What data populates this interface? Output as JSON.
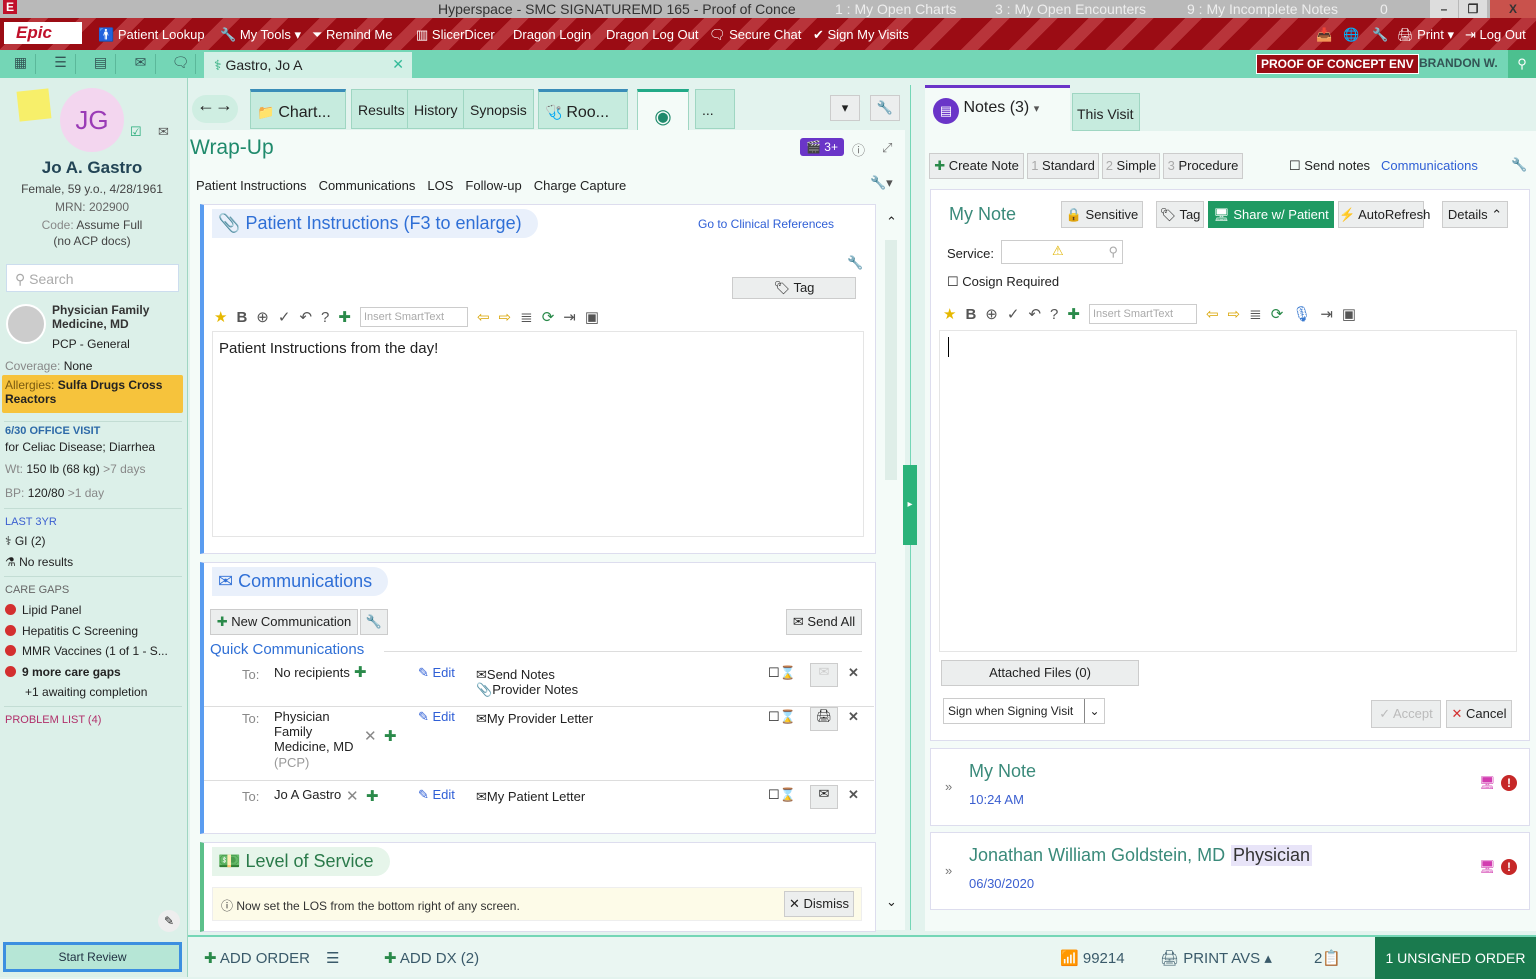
{
  "window": {
    "title": "Hyperspace - SMC SIGNATUREMD 165 - Proof of Conce",
    "msgs": [
      "1 : My Open Charts",
      "3 : My Open Encounters",
      "9 : My Incomplete Notes",
      "0"
    ]
  },
  "menubar": {
    "logo": "Epic",
    "items": [
      "Patient Lookup",
      "My Tools",
      "Remind Me",
      "SlicerDicer",
      "Dragon Login",
      "Dragon Log Out",
      "Secure Chat",
      "Sign My Visits"
    ],
    "print": "Print",
    "logout": "Log Out"
  },
  "workspace": {
    "patient_tab": "Gastro, Jo A",
    "env": "PROOF OF CONCEPT ENV",
    "user": "BRANDON W."
  },
  "patient": {
    "initials": "JG",
    "name": "Jo A. Gastro",
    "demo": "Female, 59 y.o., 4/28/1961",
    "mrn": "MRN: 202900",
    "code_label": "Code:",
    "code": "Assume Full",
    "acp": "(no ACP docs)",
    "search_placeholder": "Search",
    "pcp_name1": "Physician Family",
    "pcp_name2": "Medicine, MD",
    "pcp_role": "PCP - General",
    "coverage_label": "Coverage:",
    "coverage": "None",
    "allergies_label": "Allergies:",
    "allergies": "Sulfa Drugs Cross Reactors",
    "visit_title": "6/30 OFFICE VISIT",
    "visit_reason": "for Celiac Disease;  Diarrhea",
    "wt_label": "Wt:",
    "wt": "150 lb (68 kg)",
    "wt_age": ">7 days",
    "bp_label": "BP:",
    "bp": "120/80",
    "bp_age": ">1 day",
    "last3yr": "LAST 3YR",
    "gi": "GI (2)",
    "results": "No results",
    "care_gaps_title": "CARE GAPS",
    "care_gaps": [
      "Lipid Panel",
      "Hepatitis C Screening",
      "MMR Vaccines (1 of 1 - S...",
      "9 more care gaps"
    ],
    "awaiting": "+1 awaiting completion",
    "problem_list": "PROBLEM LIST (4)",
    "start_review": "Start Review"
  },
  "activity_tabs": [
    "Chart...",
    "Results",
    "History",
    "Synopsis",
    "Roo...",
    "..."
  ],
  "wrapup": {
    "title": "Wrap-Up",
    "badge": "3+",
    "sections": [
      "Patient Instructions",
      "Communications",
      "LOS",
      "Follow-up",
      "Charge Capture"
    ],
    "pi_title": "Patient Instructions (F3 to enlarge)",
    "clin_ref": "Go to Clinical References",
    "tag": "Tag",
    "smarttext": "Insert SmartText",
    "pi_text": "Patient Instructions from the day!",
    "comm_title": "Communications",
    "new_comm": "New Communication",
    "send_all": "Send All",
    "quick": "Quick Communications",
    "to": "To:",
    "edit": "Edit",
    "rows": [
      {
        "to": "No recipients",
        "docs": [
          "Send Notes",
          "Provider Notes"
        ]
      },
      {
        "to": "Physician Family Medicine, MD",
        "sub": "(PCP)",
        "docs": [
          "My Provider Letter"
        ]
      },
      {
        "to": "Jo A Gastro",
        "docs": [
          "My Patient Letter"
        ]
      }
    ],
    "los_title": "Level of Service",
    "los_msg": "Now set the LOS from the bottom right of any screen.",
    "dismiss": "Dismiss"
  },
  "notes": {
    "tab": "Notes (3)",
    "this_visit": "This Visit",
    "create": "Create Note",
    "templates": [
      {
        "n": "1",
        "l": "Standard"
      },
      {
        "n": "2",
        "l": "Simple"
      },
      {
        "n": "3",
        "l": "Procedure"
      }
    ],
    "send_notes": "Send notes",
    "communications": "Communications",
    "my_note": "My Note",
    "sensitive": "Sensitive",
    "tag": "Tag",
    "share": "Share w/ Patient",
    "autorefresh": "AutoRefresh",
    "details": "Details",
    "service_label": "Service:",
    "cosign": "Cosign Required",
    "smarttext": "Insert SmartText",
    "attached": "Attached Files (0)",
    "sign_option": "Sign when Signing Visit",
    "accept": "Accept",
    "cancel": "Cancel",
    "list": [
      {
        "title": "My Note",
        "sub": "10:24 AM"
      },
      {
        "title": "Jonathan William Goldstein, MD",
        "role": "Physician",
        "sub": "06/30/2020"
      }
    ]
  },
  "footer": {
    "add_order": "ADD ORDER",
    "add_dx": "ADD DX (2)",
    "los": "99214",
    "print_avs": "PRINT AVS",
    "count": "2",
    "unsigned": "1 UNSIGNED ORDER"
  },
  "colors": {
    "teal": "#74d6b6",
    "red": "#9b0c14",
    "share_green": "#1f9a63",
    "purple": "#6a35c8"
  }
}
